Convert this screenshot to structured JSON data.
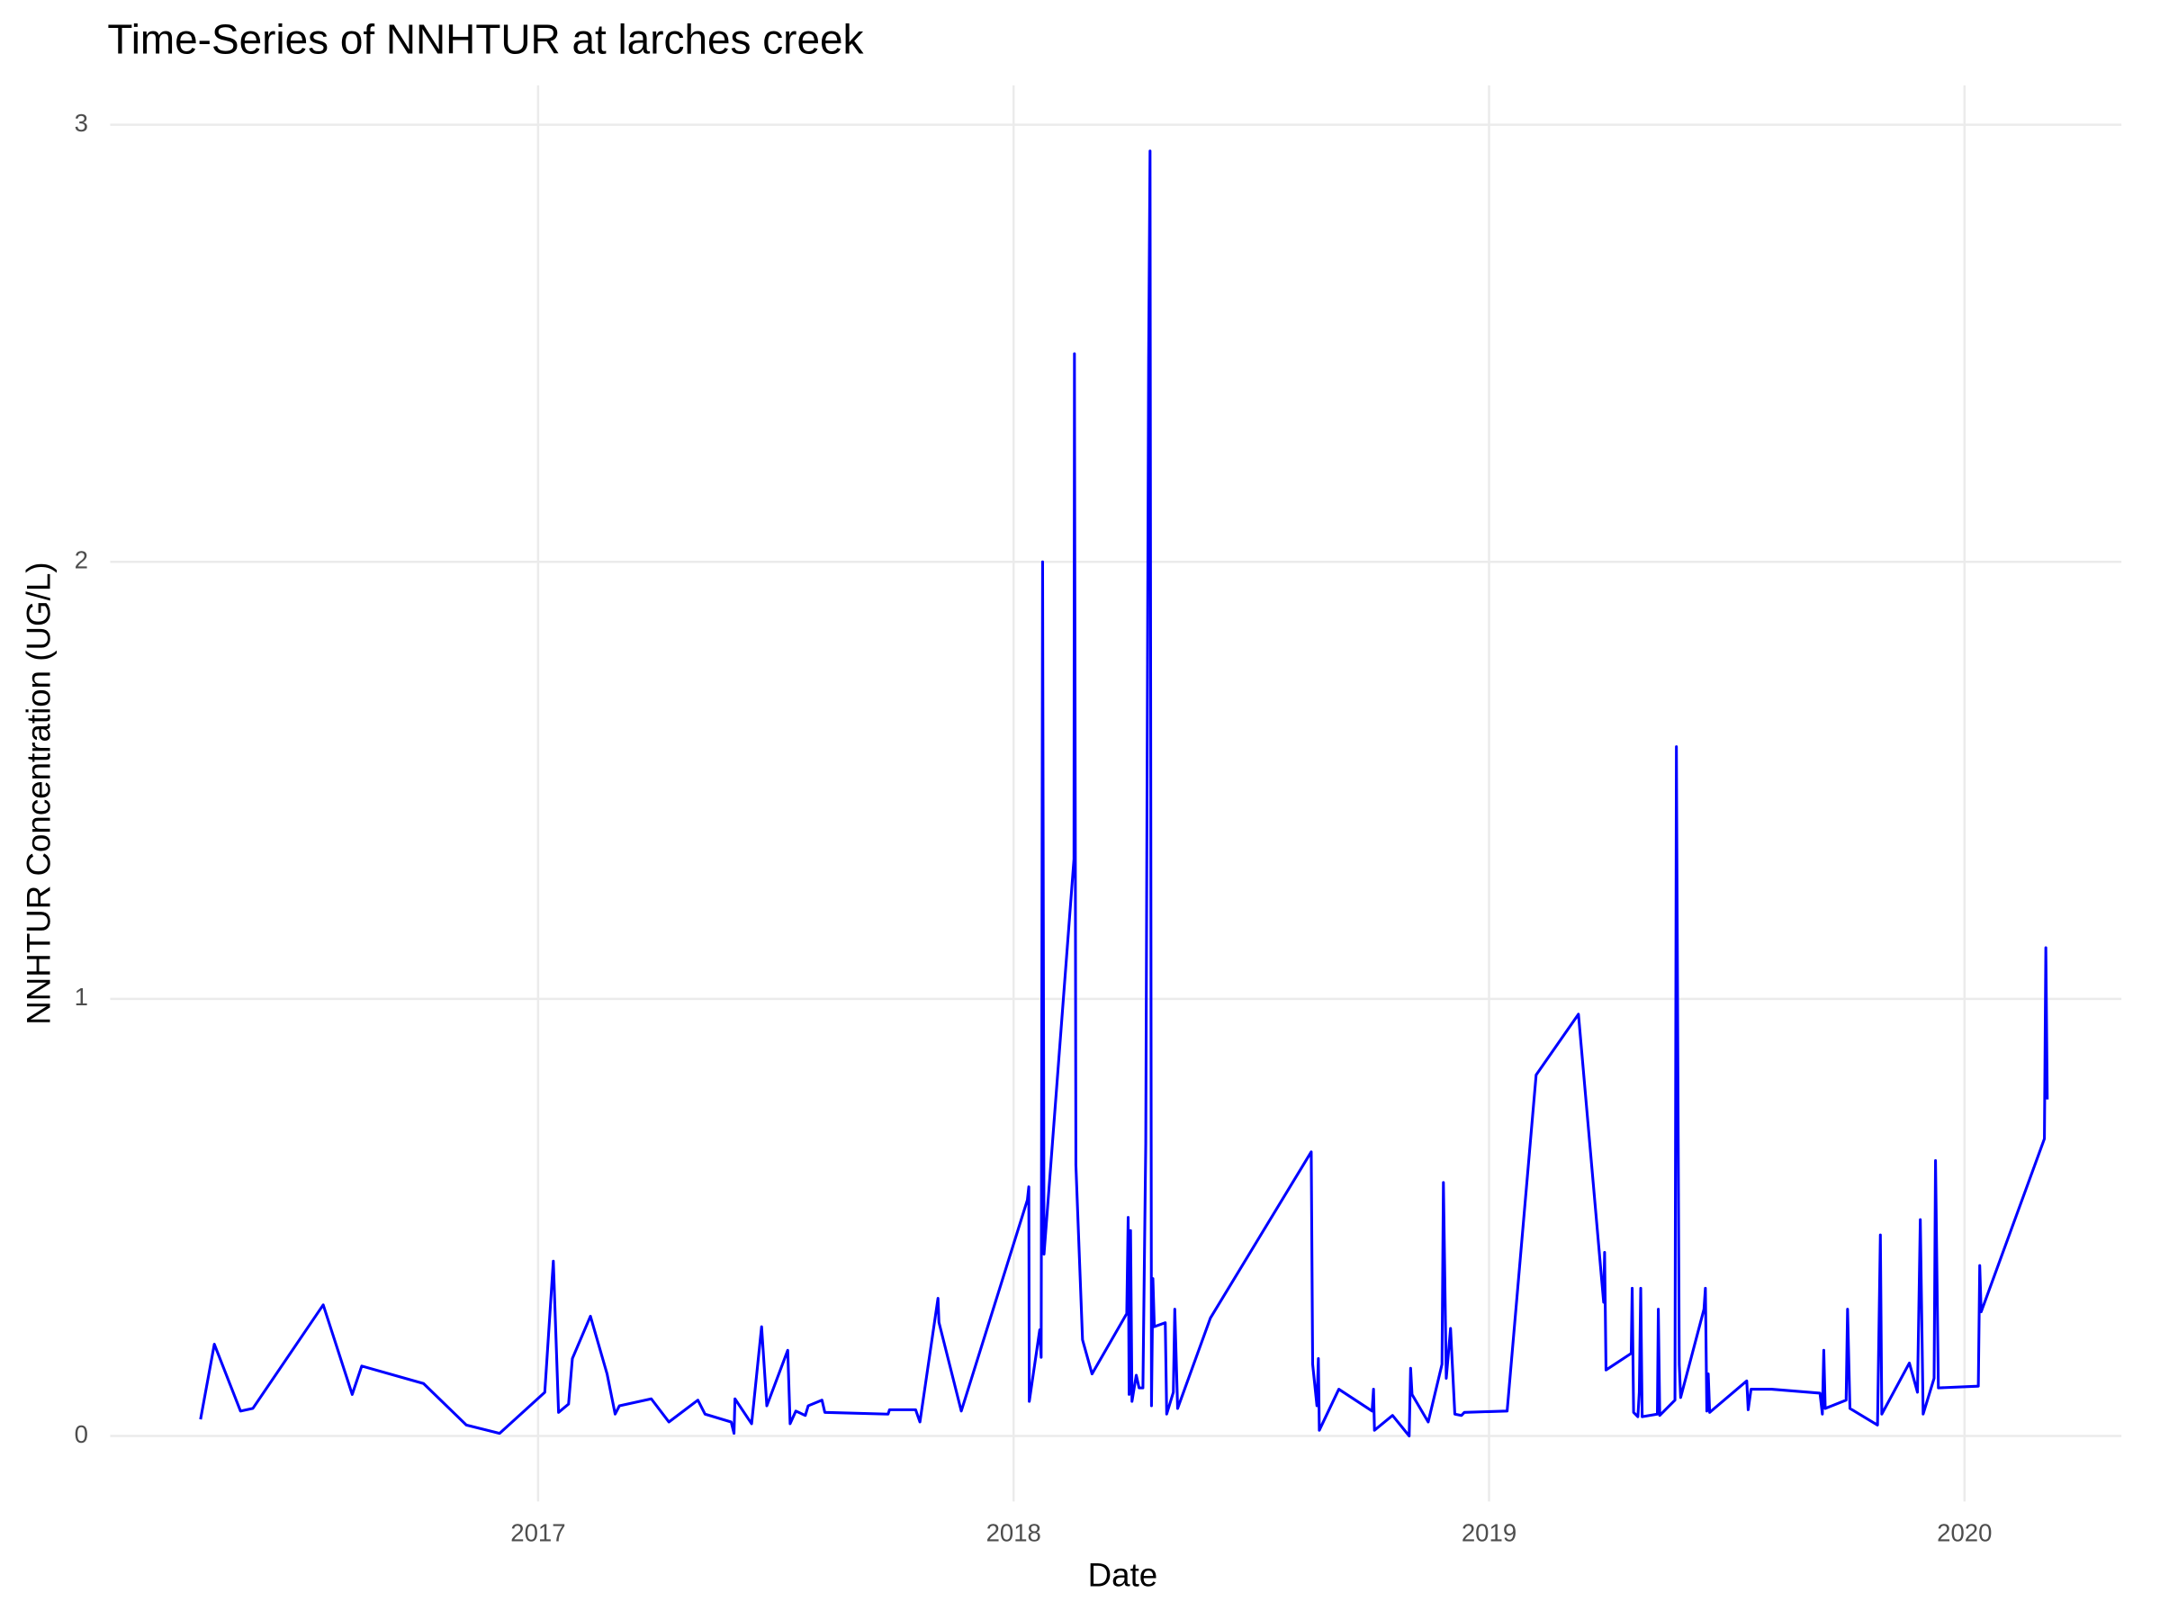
{
  "chart_data": {
    "type": "line",
    "title": "Time-Series of NNHTUR at larches creek",
    "x_label": "Date",
    "y_label": "NNHTUR Concentration (UG/L)",
    "color": "#0000ff",
    "grid": true,
    "xlim": [
      2016.1,
      2020.33
    ],
    "ylim": [
      -0.15,
      3.09
    ],
    "xticks": [
      2017,
      2018,
      2019,
      2020
    ],
    "yticks": [
      0,
      1,
      2,
      3
    ],
    "x": [
      2016.29,
      2016.319,
      2016.374,
      2016.4,
      2016.548,
      2016.609,
      2016.629,
      2016.759,
      2016.849,
      2016.919,
      2017.014,
      2017.032,
      2017.043,
      2017.064,
      2017.072,
      2017.11,
      2017.145,
      2017.162,
      2017.171,
      2017.238,
      2017.275,
      2017.336,
      2017.351,
      2017.406,
      2017.412,
      2017.414,
      2017.449,
      2017.47,
      2017.481,
      2017.525,
      2017.53,
      2017.542,
      2017.562,
      2017.568,
      2017.597,
      2017.603,
      2017.736,
      2017.739,
      2017.794,
      2017.803,
      2017.841,
      2017.843,
      2017.89,
      2018.029,
      2018.032,
      2018.033,
      2018.055,
      2018.058,
      2018.061,
      2018.064,
      2018.127,
      2018.128,
      2018.131,
      2018.145,
      2018.165,
      2018.238,
      2018.241,
      2018.243,
      2018.246,
      2018.249,
      2018.258,
      2018.264,
      2018.272,
      2018.278,
      2018.284,
      2018.287,
      2018.29,
      2018.293,
      2018.296,
      2018.319,
      2018.322,
      2018.336,
      2018.339,
      2018.345,
      2018.414,
      2018.626,
      2018.629,
      2018.638,
      2018.641,
      2018.643,
      2018.684,
      2018.754,
      2018.757,
      2018.759,
      2018.797,
      2018.832,
      2018.835,
      2018.838,
      2018.872,
      2018.901,
      2018.904,
      2018.91,
      2018.919,
      2018.928,
      2018.942,
      2018.948,
      2019.038,
      2019.099,
      2019.188,
      2019.194,
      2019.241,
      2019.243,
      2019.246,
      2019.299,
      2019.301,
      2019.304,
      2019.313,
      2019.316,
      2019.319,
      2019.322,
      2019.354,
      2019.356,
      2019.359,
      2019.391,
      2019.394,
      2019.4,
      2019.403,
      2019.452,
      2019.455,
      2019.458,
      2019.461,
      2019.464,
      2019.542,
      2019.545,
      2019.551,
      2019.594,
      2019.696,
      2019.701,
      2019.704,
      2019.707,
      2019.751,
      2019.754,
      2019.759,
      2019.817,
      2019.823,
      2019.826,
      2019.884,
      2019.901,
      2019.907,
      2019.913,
      2019.936,
      2019.939,
      2019.945,
      2020.029,
      2020.032,
      2020.035,
      2020.168,
      2020.171,
      2020.174
    ],
    "values": [
      0.038,
      0.21,
      0.057,
      0.063,
      0.3,
      0.095,
      0.16,
      0.12,
      0.025,
      0.006,
      0.1,
      0.4,
      0.054,
      0.073,
      0.177,
      0.274,
      0.142,
      0.05,
      0.069,
      0.085,
      0.032,
      0.082,
      0.05,
      0.032,
      0.006,
      0.085,
      0.028,
      0.25,
      0.069,
      0.196,
      0.028,
      0.057,
      0.047,
      0.069,
      0.082,
      0.054,
      0.05,
      0.06,
      0.06,
      0.032,
      0.315,
      0.26,
      0.057,
      0.54,
      0.57,
      0.079,
      0.243,
      0.18,
      2.0,
      0.416,
      1.32,
      2.476,
      0.62,
      0.22,
      0.142,
      0.28,
      0.5,
      0.095,
      0.47,
      0.079,
      0.139,
      0.11,
      0.11,
      0.67,
      2.464,
      2.94,
      0.069,
      0.36,
      0.25,
      0.259,
      0.05,
      0.1,
      0.29,
      0.063,
      0.27,
      0.65,
      0.164,
      0.069,
      0.177,
      0.013,
      0.107,
      0.057,
      0.107,
      0.013,
      0.047,
      0.0,
      0.155,
      0.095,
      0.032,
      0.164,
      0.58,
      0.132,
      0.246,
      0.05,
      0.047,
      0.054,
      0.057,
      0.826,
      0.965,
      0.89,
      0.306,
      0.42,
      0.151,
      0.189,
      0.338,
      0.054,
      0.044,
      0.1,
      0.338,
      0.044,
      0.05,
      0.29,
      0.047,
      0.082,
      1.577,
      0.164,
      0.088,
      0.29,
      0.338,
      0.057,
      0.142,
      0.054,
      0.126,
      0.06,
      0.107,
      0.107,
      0.098,
      0.05,
      0.196,
      0.063,
      0.082,
      0.29,
      0.063,
      0.025,
      0.46,
      0.05,
      0.167,
      0.1,
      0.495,
      0.05,
      0.132,
      0.63,
      0.11,
      0.114,
      0.39,
      0.284,
      0.68,
      1.117,
      0.77
    ]
  }
}
